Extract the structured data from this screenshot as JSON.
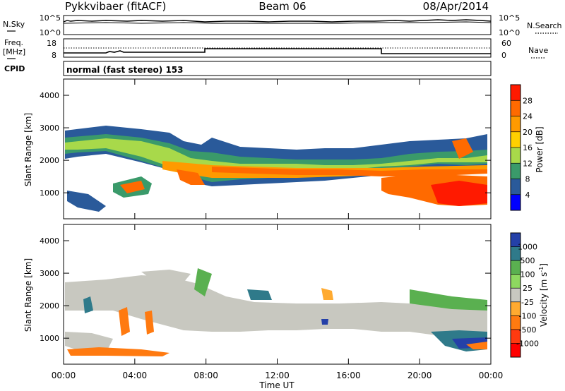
{
  "header": {
    "station": "Pykkvibaer (fitACF)",
    "beam": "Beam 06",
    "date": "08/Apr/2014"
  },
  "noise_panel": {
    "left_label": "N.Sky",
    "left_ticks": [
      "10^5",
      "10^0"
    ],
    "right_label": "N.Search",
    "right_ticks": [
      "10^5",
      "10^0"
    ]
  },
  "freq_panel": {
    "left_label_1": "Freq.",
    "left_label_2": "[MHz]",
    "left_ticks": [
      "18",
      "8"
    ],
    "right_label": "Nave",
    "right_ticks": [
      "60",
      "0"
    ]
  },
  "cpid": {
    "label": "CPID",
    "value": "normal (fast stereo) 153"
  },
  "time_axis": {
    "ticks": [
      "00:00",
      "04:00",
      "08:00",
      "12:00",
      "16:00",
      "20:00",
      "00:00"
    ],
    "label": "Time UT"
  },
  "chart_data": [
    {
      "type": "heatmap",
      "name": "power-panel",
      "ylabel": "Slant Range [km]",
      "ylim": [
        200,
        4500
      ],
      "yticks": [
        "1000",
        "2000",
        "3000",
        "4000"
      ],
      "xlim_hours": [
        0,
        24
      ],
      "colorbar": {
        "label": "Power [dB]",
        "ticks": [
          "28",
          "24",
          "20",
          "16",
          "12",
          "8",
          "4"
        ],
        "colors": [
          "#ff1a00",
          "#ff6a00",
          "#ff9a00",
          "#ffd000",
          "#a8d94a",
          "#3a9a6a",
          "#2a5a9a",
          "#0000ff"
        ]
      }
    },
    {
      "type": "heatmap",
      "name": "velocity-panel",
      "ylabel": "Slant Range [km]",
      "ylim": [
        200,
        4500
      ],
      "yticks": [
        "1000",
        "2000",
        "3000",
        "4000"
      ],
      "xlim_hours": [
        0,
        24
      ],
      "colorbar": {
        "label": "Velocity [m s",
        "label_sup": "-1",
        "label_end": "]",
        "ticks": [
          "1000",
          "500",
          "100",
          "25",
          "-25",
          "-100",
          "-500",
          "-1000"
        ],
        "colors": [
          "#2440a8",
          "#2f7a8a",
          "#5ab050",
          "#8ed860",
          "#c8c8c0",
          "#ffaa30",
          "#ff7a10",
          "#ff3a10",
          "#ff0000"
        ]
      }
    }
  ]
}
